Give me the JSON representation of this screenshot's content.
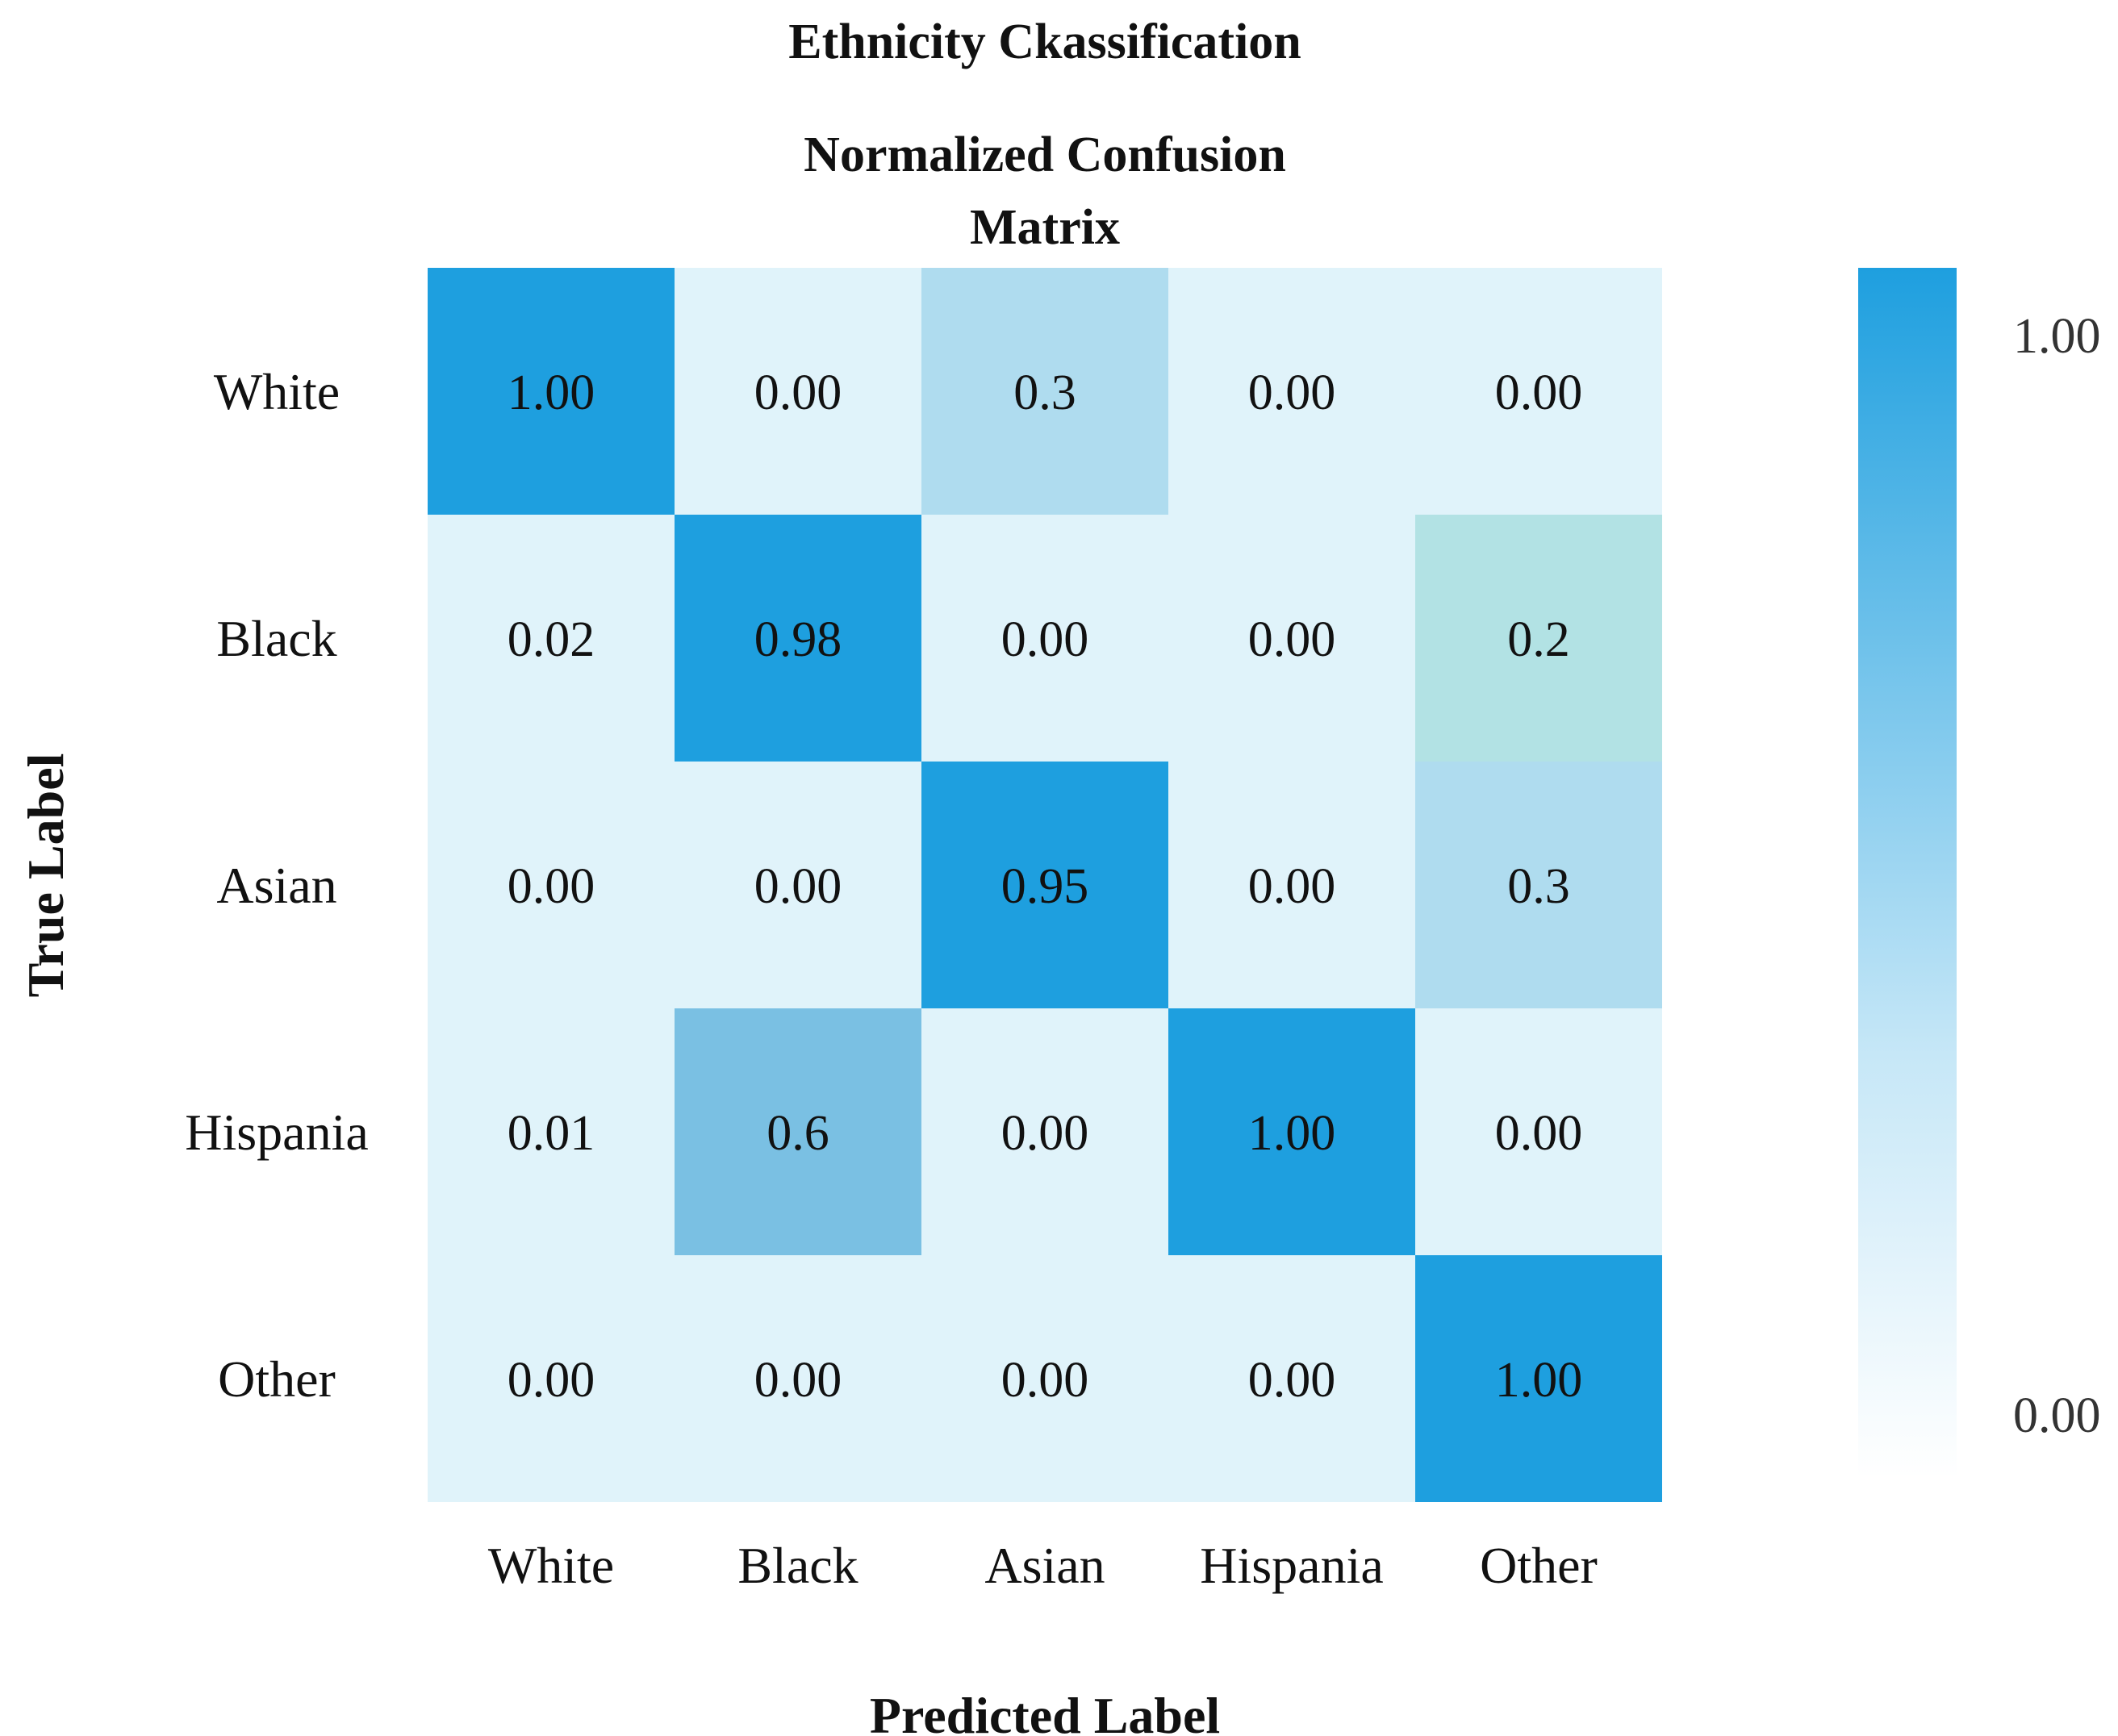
{
  "chart_data": {
    "type": "heatmap",
    "suptitle": "Ethnicity Ckassification",
    "title_line1": "Normalized Confusion",
    "title_line2": "Matrix",
    "xlabel": "Predicted Label",
    "ylabel": "True Label",
    "x_categories": [
      "White",
      "Black",
      "Asian",
      "Hispania",
      "Other"
    ],
    "y_categories": [
      "White",
      "Black",
      "Asian",
      "Hispania",
      "Other"
    ],
    "values": [
      [
        1.0,
        0.0,
        0.3,
        0.0,
        0.0
      ],
      [
        0.02,
        0.98,
        0.0,
        0.0,
        0.2
      ],
      [
        0.0,
        0.0,
        0.95,
        0.0,
        0.3
      ],
      [
        0.01,
        0.6,
        0.0,
        1.0,
        0.0
      ],
      [
        0.0,
        0.0,
        0.0,
        0.0,
        1.0
      ]
    ],
    "labels": [
      [
        "1.00",
        "0.00",
        "0.3",
        "0.00",
        "0.00"
      ],
      [
        "0.02",
        "0.98",
        "0.00",
        "0.00",
        "0.2"
      ],
      [
        "0.00",
        "0.00",
        "0.95",
        "0.00",
        "0.3"
      ],
      [
        "0.01",
        "0.6",
        "0.00",
        "1.00",
        "0.00"
      ],
      [
        "0.00",
        "0.00",
        "0.00",
        "0.00",
        "1.00"
      ]
    ],
    "colorbar": {
      "min": 0.0,
      "max": 1.0,
      "min_label": "0.00",
      "max_label": "1.00",
      "low_color": "#ffffff",
      "high_color": "#1e9fdf"
    },
    "cell_colors": {
      "low": "#e0f3fa",
      "mid": "#afdcef",
      "mid_green": "#b2e2e4",
      "medium": "#7ac0e3",
      "high": "#1e9fdf"
    }
  }
}
